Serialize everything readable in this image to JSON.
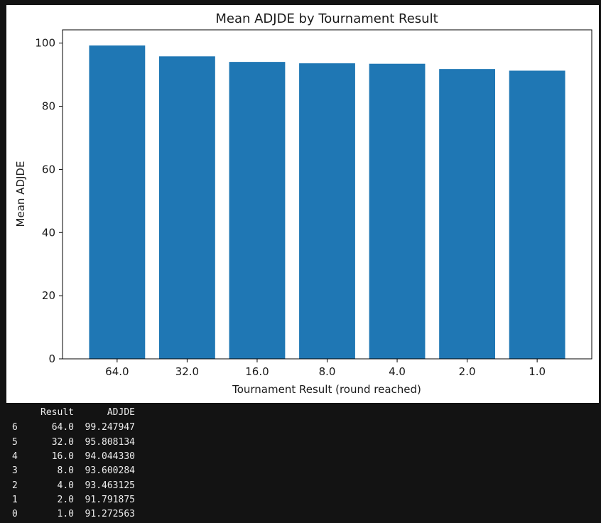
{
  "chart_data": {
    "type": "bar",
    "title": "Mean ADJDE by Tournament Result",
    "xlabel": "Tournament Result (round reached)",
    "ylabel": "Mean ADJDE",
    "categories": [
      "64.0",
      "32.0",
      "16.0",
      "8.0",
      "4.0",
      "2.0",
      "1.0"
    ],
    "values": [
      99.247947,
      95.808134,
      94.04433,
      93.600284,
      93.463125,
      91.791875,
      91.272563
    ],
    "ylim": [
      0,
      104.2
    ],
    "yticks": [
      "0",
      "20",
      "40",
      "60",
      "80",
      "100"
    ],
    "bar_color": "#1f77b4",
    "grid": false,
    "legend": "none"
  },
  "table_output": {
    "columns": [
      "",
      "Result",
      "ADJDE"
    ],
    "rows": [
      [
        "6",
        "64.0",
        "99.247947"
      ],
      [
        "5",
        "32.0",
        "95.808134"
      ],
      [
        "4",
        "16.0",
        "94.044330"
      ],
      [
        "3",
        "8.0",
        "93.600284"
      ],
      [
        "2",
        "4.0",
        "93.463125"
      ],
      [
        "1",
        "2.0",
        "91.791875"
      ],
      [
        "0",
        "1.0",
        "91.272563"
      ]
    ]
  }
}
